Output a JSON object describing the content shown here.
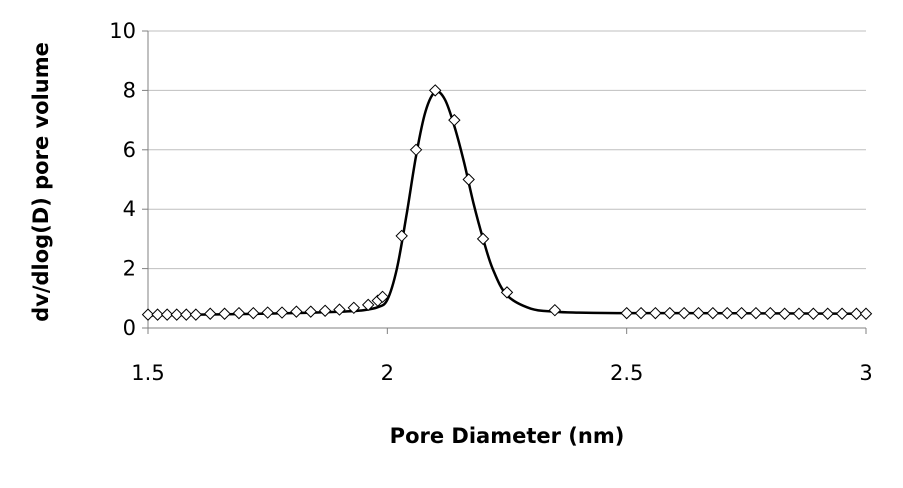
{
  "chart_data": {
    "type": "scatter",
    "title": "",
    "xlabel": "Pore Diameter (nm)",
    "ylabel": "dv/dlog(D) pore volume",
    "xlim": [
      1.5,
      3
    ],
    "ylim": [
      0,
      10
    ],
    "xticks": [
      1.5,
      2,
      2.5,
      3
    ],
    "xtick_labels": [
      "1.5",
      "2",
      "2.5",
      "3"
    ],
    "yticks": [
      0,
      2,
      4,
      6,
      8,
      10
    ],
    "ytick_labels": [
      "0",
      "2",
      "4",
      "6",
      "8",
      "10"
    ],
    "grid": "horizontal",
    "legend": "none",
    "marker": "diamond-open",
    "colors": {
      "line": "#000000",
      "marker_stroke": "#000000",
      "grid": "#bfbfbf",
      "axis": "#808080"
    },
    "series": [
      {
        "x": [
          1.5,
          1.52,
          1.54,
          1.56,
          1.58,
          1.6,
          1.63,
          1.66,
          1.69,
          1.72,
          1.75,
          1.78,
          1.81,
          1.84,
          1.87,
          1.9,
          1.93,
          1.96,
          1.98,
          1.99,
          2.03,
          2.06,
          2.1,
          2.14,
          2.17,
          2.2,
          2.25,
          2.35,
          2.5,
          2.53,
          2.56,
          2.59,
          2.62,
          2.65,
          2.68,
          2.71,
          2.74,
          2.77,
          2.8,
          2.83,
          2.86,
          2.89,
          2.92,
          2.95,
          2.98,
          3.0
        ],
        "values": [
          0.45,
          0.45,
          0.45,
          0.45,
          0.45,
          0.45,
          0.48,
          0.48,
          0.5,
          0.5,
          0.52,
          0.52,
          0.55,
          0.55,
          0.58,
          0.62,
          0.68,
          0.78,
          0.92,
          1.05,
          3.1,
          6.0,
          8.0,
          7.0,
          5.0,
          3.0,
          1.2,
          0.6,
          0.5,
          0.5,
          0.5,
          0.5,
          0.5,
          0.5,
          0.5,
          0.5,
          0.5,
          0.5,
          0.5,
          0.48,
          0.48,
          0.48,
          0.48,
          0.48,
          0.48,
          0.48
        ]
      }
    ],
    "fit_curve": {
      "x": [
        1.5,
        1.6,
        1.7,
        1.8,
        1.9,
        1.95,
        1.98,
        2.0,
        2.02,
        2.04,
        2.06,
        2.08,
        2.1,
        2.12,
        2.14,
        2.16,
        2.18,
        2.2,
        2.22,
        2.25,
        2.3,
        2.35,
        2.4,
        2.5,
        2.6,
        2.8,
        3.0
      ],
      "values": [
        0.42,
        0.45,
        0.47,
        0.5,
        0.55,
        0.6,
        0.7,
        0.95,
        2.0,
        3.8,
        5.8,
        7.3,
        7.95,
        7.7,
        6.8,
        5.6,
        4.2,
        3.0,
        2.0,
        1.1,
        0.65,
        0.55,
        0.52,
        0.5,
        0.5,
        0.49,
        0.48
      ]
    }
  }
}
